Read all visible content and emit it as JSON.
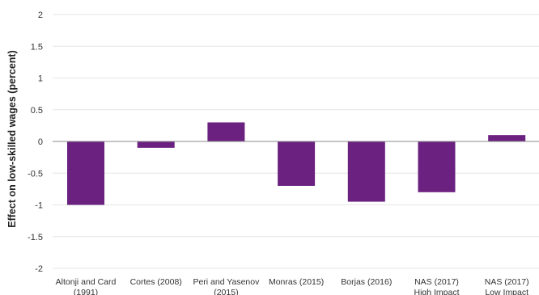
{
  "chart_data": {
    "type": "bar",
    "title": "",
    "xlabel": "",
    "ylabel": "Effect on low-skilled wages (percent)",
    "ylim": [
      -2,
      2
    ],
    "yticks": [
      2,
      1.5,
      1,
      0.5,
      0,
      -0.5,
      -1,
      -1.5,
      -2
    ],
    "ytick_labels": [
      "2",
      "1.5",
      "1",
      "0.5",
      "0",
      "-0.5",
      "-1",
      "-1.5",
      "-2"
    ],
    "grid": true,
    "legend": "none",
    "bar_color": "#6b2180",
    "grid_color": "#e6e6e6",
    "zero_line_color": "#888888",
    "categories": [
      [
        "Altonji and Card",
        "(1991)"
      ],
      [
        "Cortes (2008)"
      ],
      [
        "Peri and Yasenov",
        "(2015)"
      ],
      [
        "Monras (2015)"
      ],
      [
        "Borjas (2016)"
      ],
      [
        "NAS (2017)",
        "High Impact"
      ],
      [
        "NAS (2017)",
        "Low Impact"
      ]
    ],
    "values": [
      -1.0,
      -0.1,
      0.3,
      -0.7,
      -0.95,
      -0.8,
      0.1
    ]
  }
}
